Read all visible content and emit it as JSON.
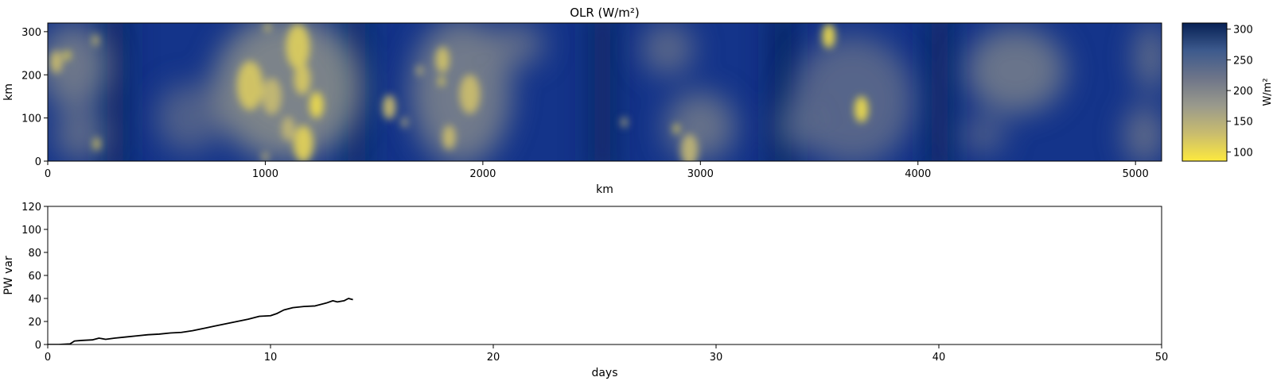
{
  "chart_data": [
    {
      "type": "heatmap",
      "title": "OLR (W/m²)",
      "xlabel": "km",
      "ylabel": "km",
      "xlim": [
        0,
        5120
      ],
      "ylim": [
        0,
        320
      ],
      "x_ticks": [
        "0",
        "1000",
        "2000",
        "3000",
        "4000",
        "5000"
      ],
      "y_ticks": [
        "0",
        "100",
        "200",
        "300"
      ],
      "colorbar": {
        "label": "W/m²",
        "range": [
          85,
          310
        ],
        "ticks": [
          "100",
          "150",
          "200",
          "250",
          "300"
        ],
        "colors": [
          "#fde93e",
          "#c9bc6e",
          "#9a9a8c",
          "#6e7589",
          "#3d5a8d",
          "#072155"
        ]
      },
      "background_color": "#14348a",
      "features": {
        "bright_cells": [
          {
            "x": 40,
            "y": 230,
            "r": 28,
            "v": 130
          },
          {
            "x": 90,
            "y": 245,
            "r": 12,
            "v": 100
          },
          {
            "x": 220,
            "y": 280,
            "r": 14,
            "v": 130
          },
          {
            "x": 225,
            "y": 40,
            "r": 16,
            "v": 120
          },
          {
            "x": 1010,
            "y": 310,
            "r": 10,
            "v": 120
          },
          {
            "x": 930,
            "y": 175,
            "r": 60,
            "v": 120
          },
          {
            "x": 1030,
            "y": 150,
            "r": 45,
            "v": 135
          },
          {
            "x": 1150,
            "y": 265,
            "r": 55,
            "v": 115
          },
          {
            "x": 1170,
            "y": 190,
            "r": 38,
            "v": 120
          },
          {
            "x": 1235,
            "y": 130,
            "r": 32,
            "v": 100
          },
          {
            "x": 1175,
            "y": 40,
            "r": 45,
            "v": 110
          },
          {
            "x": 1105,
            "y": 75,
            "r": 30,
            "v": 140
          },
          {
            "x": 1000,
            "y": 10,
            "r": 12,
            "v": 140
          },
          {
            "x": 1570,
            "y": 125,
            "r": 30,
            "v": 130
          },
          {
            "x": 1640,
            "y": 90,
            "r": 12,
            "v": 150
          },
          {
            "x": 1710,
            "y": 210,
            "r": 12,
            "v": 140
          },
          {
            "x": 1815,
            "y": 235,
            "r": 32,
            "v": 125
          },
          {
            "x": 1810,
            "y": 185,
            "r": 12,
            "v": 110
          },
          {
            "x": 1940,
            "y": 155,
            "r": 48,
            "v": 130
          },
          {
            "x": 1845,
            "y": 55,
            "r": 30,
            "v": 130
          },
          {
            "x": 2650,
            "y": 90,
            "r": 12,
            "v": 150
          },
          {
            "x": 2890,
            "y": 75,
            "r": 12,
            "v": 110
          },
          {
            "x": 2950,
            "y": 25,
            "r": 40,
            "v": 140
          },
          {
            "x": 3590,
            "y": 290,
            "r": 30,
            "v": 100
          },
          {
            "x": 3740,
            "y": 120,
            "r": 32,
            "v": 100
          }
        ],
        "cloud_regions": [
          {
            "x": 120,
            "y": 220,
            "rx": 160,
            "ry": 100,
            "v": 190
          },
          {
            "x": 150,
            "y": 60,
            "rx": 120,
            "ry": 60,
            "v": 210
          },
          {
            "x": 1100,
            "y": 170,
            "rx": 340,
            "ry": 170,
            "v": 170
          },
          {
            "x": 650,
            "y": 100,
            "rx": 150,
            "ry": 80,
            "v": 230
          },
          {
            "x": 1900,
            "y": 160,
            "rx": 230,
            "ry": 170,
            "v": 185
          },
          {
            "x": 2150,
            "y": 270,
            "rx": 130,
            "ry": 50,
            "v": 210
          },
          {
            "x": 2850,
            "y": 260,
            "rx": 120,
            "ry": 60,
            "v": 215
          },
          {
            "x": 3000,
            "y": 80,
            "rx": 160,
            "ry": 80,
            "v": 200
          },
          {
            "x": 3700,
            "y": 140,
            "rx": 280,
            "ry": 150,
            "v": 220
          },
          {
            "x": 3450,
            "y": 80,
            "rx": 100,
            "ry": 60,
            "v": 235
          },
          {
            "x": 4450,
            "y": 210,
            "rx": 230,
            "ry": 100,
            "v": 195
          },
          {
            "x": 4300,
            "y": 60,
            "rx": 100,
            "ry": 40,
            "v": 225
          },
          {
            "x": 5070,
            "y": 240,
            "rx": 70,
            "ry": 80,
            "v": 200
          },
          {
            "x": 5040,
            "y": 60,
            "rx": 90,
            "ry": 70,
            "v": 205
          }
        ],
        "dark_bands": [
          {
            "x": 310,
            "v": 305
          },
          {
            "x": 1420,
            "v": 300
          },
          {
            "x": 2550,
            "v": 305
          },
          {
            "x": 3380,
            "v": 310
          },
          {
            "x": 4100,
            "v": 305
          }
        ]
      }
    },
    {
      "type": "line",
      "xlabel": "days",
      "ylabel": "PW var",
      "xlim": [
        0,
        50
      ],
      "ylim": [
        0,
        120
      ],
      "x_ticks": [
        "0",
        "10",
        "20",
        "30",
        "40",
        "50"
      ],
      "y_ticks": [
        "0",
        "20",
        "40",
        "60",
        "80",
        "100",
        "120"
      ],
      "series": [
        {
          "color": "#000000",
          "x": [
            0,
            0.5,
            1.0,
            1.2,
            1.5,
            2.0,
            2.3,
            2.6,
            3.0,
            3.5,
            4.0,
            4.5,
            5.0,
            5.5,
            6.0,
            6.5,
            7.0,
            7.5,
            8.0,
            8.5,
            9.0,
            9.5,
            10.0,
            10.3,
            10.6,
            11.0,
            11.5,
            12.0,
            12.5,
            12.8,
            13.0,
            13.3,
            13.5,
            13.7
          ],
          "y": [
            0,
            0,
            0.5,
            3,
            3.5,
            4,
            5.5,
            4.5,
            5.5,
            6.5,
            7.5,
            8.5,
            9,
            10,
            10.5,
            12,
            14,
            16,
            18,
            20,
            22,
            24.5,
            25,
            27,
            30,
            32,
            33,
            33.5,
            36,
            38,
            37,
            38,
            40,
            39
          ]
        }
      ]
    }
  ]
}
